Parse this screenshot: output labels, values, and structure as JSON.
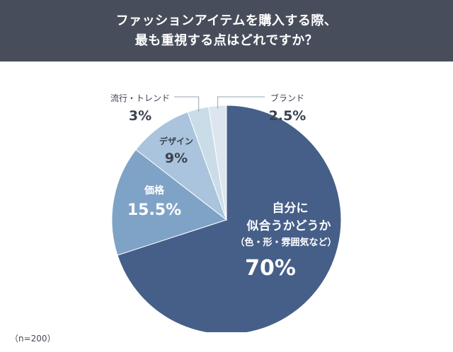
{
  "header": {
    "title_line1": "ファッションアイテムを購入する際、",
    "title_line2": "最も重視する点はどれですか？"
  },
  "note": "（n=200）",
  "colors": {
    "header_bg": "#474d5b",
    "slice_1": "#465f88",
    "slice_2": "#7fa3c6",
    "slice_3": "#a9c4dc",
    "slice_4": "#cbdce9",
    "slice_5": "#dde6ee",
    "label_dark": "#3a4150",
    "leader": "#9aa3b0"
  },
  "chart_data": {
    "type": "pie",
    "start": "12 o'clock, clockwise",
    "slices": [
      {
        "label_lines": [
          "自分に",
          "似合うかどうか",
          "（色・形・雰囲気など）"
        ],
        "value": 70,
        "value_label": "70%"
      },
      {
        "label_lines": [
          "価格"
        ],
        "value": 15.5,
        "value_label": "15.5%"
      },
      {
        "label_lines": [
          "デザイン"
        ],
        "value": 9,
        "value_label": "9%"
      },
      {
        "label_lines": [
          "流行・トレンド"
        ],
        "value": 3,
        "value_label": "3%"
      },
      {
        "label_lines": [
          "ブランド"
        ],
        "value": 2.5,
        "value_label": "2.5%"
      }
    ]
  }
}
